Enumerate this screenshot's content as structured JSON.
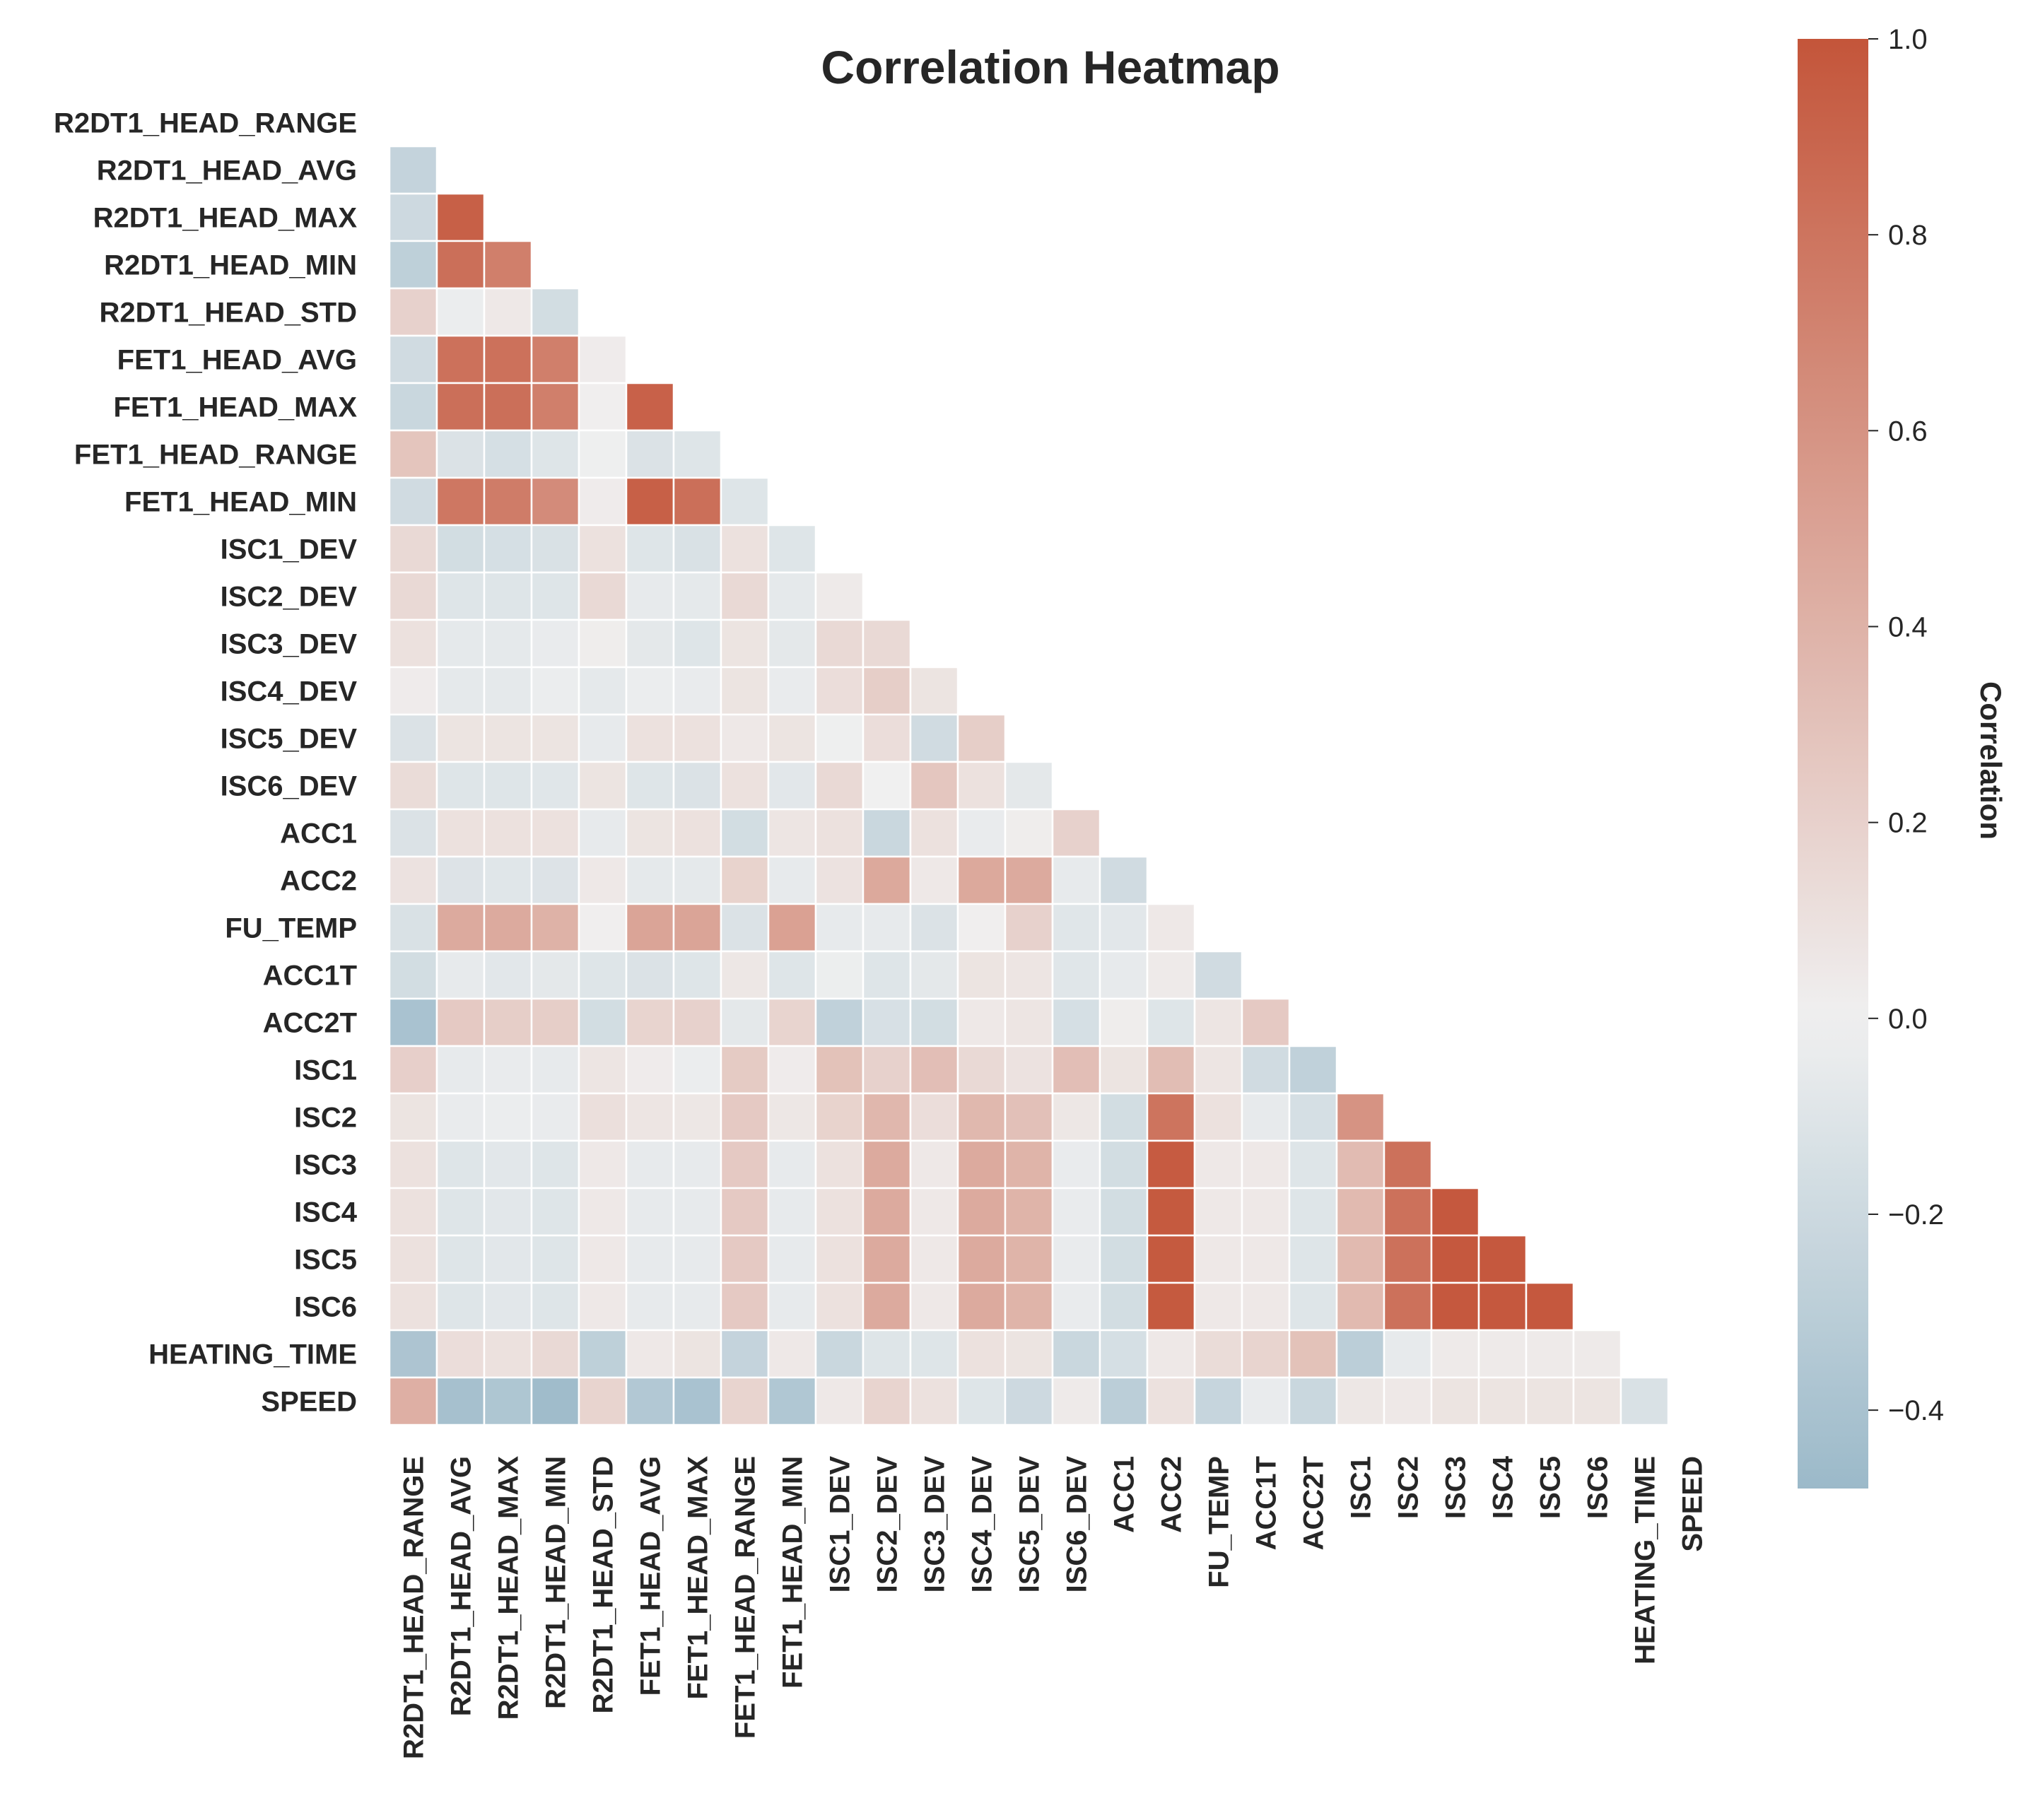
{
  "chart_data": {
    "type": "heatmap",
    "title": "Correlation Heatmap",
    "mask": "upper-triangle-including-diagonal",
    "variables": [
      "R2DT1_HEAD_RANGE",
      "R2DT1_HEAD_AVG",
      "R2DT1_HEAD_MAX",
      "R2DT1_HEAD_MIN",
      "R2DT1_HEAD_STD",
      "FET1_HEAD_AVG",
      "FET1_HEAD_MAX",
      "FET1_HEAD_RANGE",
      "FET1_HEAD_MIN",
      "ISC1_DEV",
      "ISC2_DEV",
      "ISC3_DEV",
      "ISC4_DEV",
      "ISC5_DEV",
      "ISC6_DEV",
      "ACC1",
      "ACC2",
      "FU_TEMP",
      "ACC1T",
      "ACC2T",
      "ISC1",
      "ISC2",
      "ISC3",
      "ISC4",
      "ISC5",
      "ISC6",
      "HEATING_TIME",
      "SPEED"
    ],
    "lower_triangle_values": [
      [],
      [
        -0.25
      ],
      [
        -0.2,
        0.93
      ],
      [
        -0.28,
        0.83,
        0.73
      ],
      [
        0.2,
        -0.03,
        0.05,
        -0.17
      ],
      [
        -0.18,
        0.82,
        0.82,
        0.73,
        0.03
      ],
      [
        -0.22,
        0.83,
        0.83,
        0.73,
        0.01,
        0.92
      ],
      [
        0.28,
        -0.12,
        -0.15,
        -0.1,
        -0.01,
        -0.12,
        -0.1
      ],
      [
        -0.18,
        0.78,
        0.75,
        0.65,
        0.03,
        0.93,
        0.83,
        -0.1
      ],
      [
        0.15,
        -0.17,
        -0.15,
        -0.13,
        0.1,
        -0.1,
        -0.13,
        0.1,
        -0.1
      ],
      [
        0.15,
        -0.1,
        -0.1,
        -0.1,
        0.15,
        -0.05,
        -0.06,
        0.15,
        -0.06,
        0.04
      ],
      [
        0.1,
        -0.06,
        -0.06,
        -0.04,
        0.02,
        -0.07,
        -0.1,
        0.08,
        -0.07,
        0.15,
        0.15
      ],
      [
        0.03,
        -0.06,
        -0.06,
        -0.03,
        -0.06,
        -0.03,
        -0.04,
        0.08,
        -0.04,
        0.12,
        0.22,
        0.08
      ],
      [
        -0.12,
        0.08,
        0.08,
        0.08,
        -0.05,
        0.1,
        0.1,
        0.05,
        0.08,
        -0.01,
        0.12,
        -0.18,
        0.22
      ],
      [
        0.13,
        -0.1,
        -0.1,
        -0.09,
        0.08,
        -0.1,
        -0.12,
        0.1,
        -0.08,
        0.15,
        0.0,
        0.27,
        0.1,
        -0.07
      ],
      [
        -0.12,
        0.1,
        0.1,
        0.1,
        -0.05,
        0.08,
        0.1,
        -0.17,
        0.07,
        0.1,
        -0.22,
        0.1,
        -0.04,
        0.02,
        0.2
      ],
      [
        0.09,
        -0.11,
        -0.09,
        -0.11,
        0.05,
        -0.06,
        -0.06,
        0.19,
        -0.05,
        0.09,
        0.46,
        0.05,
        0.46,
        0.45,
        -0.05,
        -0.18
      ],
      [
        -0.13,
        0.45,
        0.45,
        0.4,
        0.01,
        0.49,
        0.49,
        -0.12,
        0.51,
        -0.05,
        -0.05,
        -0.12,
        0.01,
        0.2,
        -0.09,
        -0.08,
        0.05
      ],
      [
        -0.17,
        -0.05,
        -0.08,
        -0.07,
        -0.1,
        -0.12,
        -0.1,
        0.06,
        -0.1,
        -0.02,
        -0.1,
        -0.07,
        0.08,
        0.07,
        -0.09,
        -0.05,
        0.04,
        -0.18
      ],
      [
        -0.4,
        0.25,
        0.22,
        0.22,
        -0.17,
        0.18,
        0.2,
        -0.07,
        0.18,
        -0.27,
        -0.14,
        -0.17,
        0.05,
        0.07,
        -0.15,
        0.02,
        -0.1,
        0.07,
        0.25
      ],
      [
        0.21,
        -0.05,
        -0.04,
        -0.05,
        0.07,
        0.03,
        -0.03,
        0.24,
        0.03,
        0.3,
        0.2,
        0.32,
        0.15,
        0.09,
        0.32,
        0.08,
        0.33,
        0.07,
        -0.18,
        -0.27
      ],
      [
        0.08,
        -0.04,
        -0.03,
        -0.04,
        0.11,
        0.07,
        0.06,
        0.25,
        0.06,
        0.19,
        0.37,
        0.12,
        0.36,
        0.31,
        0.06,
        -0.17,
        0.8,
        0.1,
        -0.05,
        -0.15,
        0.6
      ],
      [
        0.1,
        -0.1,
        -0.08,
        -0.1,
        0.05,
        -0.05,
        -0.05,
        0.25,
        -0.05,
        0.1,
        0.45,
        0.05,
        0.45,
        0.39,
        -0.04,
        -0.17,
        0.96,
        0.05,
        0.05,
        -0.1,
        0.34,
        0.82
      ],
      [
        0.1,
        -0.1,
        -0.08,
        -0.1,
        0.05,
        -0.05,
        -0.05,
        0.25,
        -0.05,
        0.1,
        0.45,
        0.05,
        0.45,
        0.39,
        -0.04,
        -0.17,
        0.97,
        0.05,
        0.05,
        -0.1,
        0.35,
        0.82,
        0.98
      ],
      [
        0.1,
        -0.1,
        -0.08,
        -0.1,
        0.05,
        -0.05,
        -0.05,
        0.25,
        -0.05,
        0.1,
        0.45,
        0.05,
        0.45,
        0.39,
        -0.04,
        -0.17,
        0.97,
        0.05,
        0.05,
        -0.1,
        0.35,
        0.82,
        0.98,
        0.98
      ],
      [
        0.1,
        -0.1,
        -0.08,
        -0.1,
        0.05,
        -0.05,
        -0.05,
        0.25,
        -0.05,
        0.1,
        0.45,
        0.05,
        0.45,
        0.39,
        -0.04,
        -0.17,
        0.97,
        0.05,
        0.05,
        -0.1,
        0.35,
        0.82,
        0.98,
        0.98,
        0.98
      ],
      [
        -0.38,
        0.12,
        0.1,
        0.15,
        -0.28,
        0.05,
        0.08,
        -0.25,
        0.05,
        -0.22,
        -0.1,
        -0.1,
        0.1,
        0.08,
        -0.22,
        -0.15,
        0.05,
        0.13,
        0.18,
        0.3,
        -0.3,
        -0.05,
        0.04,
        0.04,
        0.04,
        0.04
      ],
      [
        0.42,
        -0.42,
        -0.37,
        -0.45,
        0.18,
        -0.35,
        -0.4,
        0.18,
        -0.36,
        0.05,
        0.18,
        0.1,
        -0.1,
        -0.2,
        0.04,
        -0.3,
        0.1,
        -0.24,
        -0.04,
        -0.22,
        0.06,
        0.05,
        0.08,
        0.08,
        0.08,
        0.08,
        -0.13
      ]
    ],
    "colorbar": {
      "label": "Correlation",
      "range": [
        -0.48,
        1.0
      ],
      "center": 0.0,
      "ticks": [
        1.0,
        0.8,
        0.6,
        0.4,
        0.2,
        0.0,
        -0.2,
        -0.4
      ],
      "tick_labels": [
        "1.0",
        "0.8",
        "0.6",
        "0.4",
        "0.2",
        "0.0",
        "−0.2",
        "−0.4"
      ]
    },
    "colors": {
      "negative": "#9bb9c9",
      "center": "#f0f0f0",
      "positive": "#c4553a"
    },
    "grid": false
  }
}
